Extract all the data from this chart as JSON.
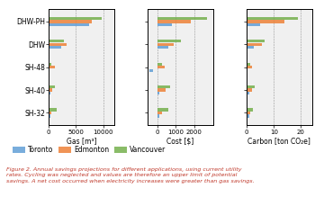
{
  "categories": [
    "DHW-PH",
    "DHW",
    "SH-48",
    "SH-40",
    "SH-32"
  ],
  "cities": [
    "Toronto",
    "Edmonton",
    "Vancouver"
  ],
  "colors": [
    "#5b9bd5",
    "#ed7d31",
    "#70ad47"
  ],
  "gas_data": {
    "Toronto": [
      7500,
      2200,
      150,
      250,
      250
    ],
    "Edmonton": [
      8000,
      3200,
      1200,
      600,
      400
    ],
    "Vancouver": [
      9800,
      2800,
      400,
      1100,
      1400
    ]
  },
  "cost_data": {
    "Toronto": [
      800,
      600,
      -200,
      100,
      100
    ],
    "Edmonton": [
      1800,
      900,
      400,
      450,
      250
    ],
    "Vancouver": [
      2700,
      1300,
      250,
      700,
      600
    ]
  },
  "carbon_data": {
    "Toronto": [
      5,
      2.5,
      0.3,
      0.8,
      0.8
    ],
    "Edmonton": [
      14,
      5.5,
      1.8,
      1.8,
      1.2
    ],
    "Vancouver": [
      19,
      6.5,
      1.2,
      2.8,
      2.2
    ]
  },
  "gas_xlim": [
    0,
    12000
  ],
  "cost_xlim": [
    -500,
    3000
  ],
  "carbon_xlim": [
    0,
    24
  ],
  "gas_xticks": [
    0,
    5000,
    10000
  ],
  "cost_xticks": [
    0,
    1000,
    2000
  ],
  "carbon_xticks": [
    0,
    10,
    20
  ],
  "gas_xticklabels": [
    "0",
    "5000",
    "10000"
  ],
  "cost_xticklabels": [
    "0",
    "1000",
    "2000"
  ],
  "carbon_xticklabels": [
    "0",
    "10",
    "20"
  ],
  "xlabel_gas": "Gas [m³]",
  "xlabel_cost": "Cost [$]",
  "xlabel_carbon": "Carbon [ton CO₂e]",
  "bar_height": 0.13,
  "caption": "Figure 2. Annual savings projections for different applications, using current utility\nrates. Cycling was neglected and values are therefore an upper limit of potential\nsavings. A net cost occurred when electricity increases were greater than gas savings.",
  "caption_color": "#c0392b",
  "bg_color": "#f0f0f0"
}
